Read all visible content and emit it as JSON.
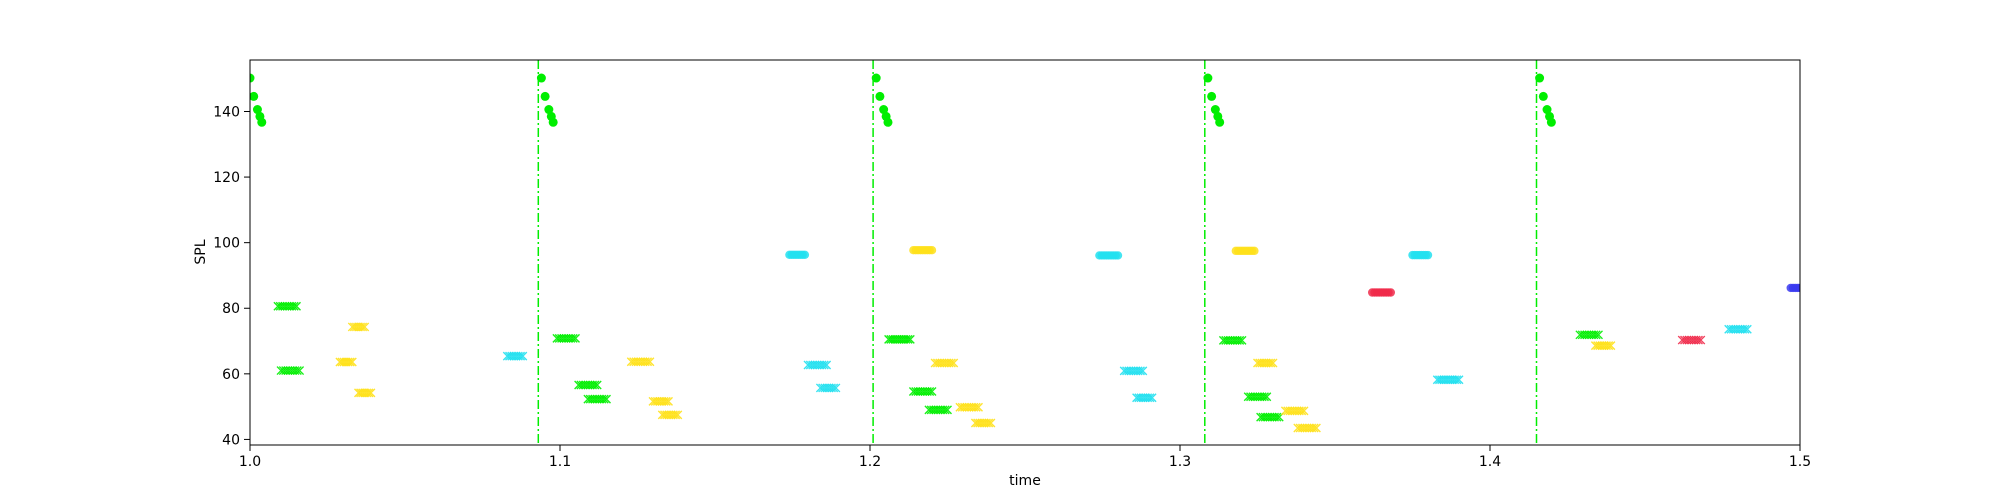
{
  "chart_data": {
    "type": "scatter",
    "title": "",
    "xlabel": "time",
    "ylabel": "SPL",
    "xlim": [
      1.0,
      1.5
    ],
    "ylim": [
      38.3,
      155.7
    ],
    "grid": false,
    "x_ticks": [
      {
        "value": 1.0,
        "label": "1.0"
      },
      {
        "value": 1.1,
        "label": "1.1"
      },
      {
        "value": 1.2,
        "label": "1.2"
      },
      {
        "value": 1.3,
        "label": "1.3"
      },
      {
        "value": 1.4,
        "label": "1.4"
      },
      {
        "value": 1.5,
        "label": "1.5"
      }
    ],
    "y_ticks": [
      {
        "value": 40,
        "label": "40"
      },
      {
        "value": 60,
        "label": "60"
      },
      {
        "value": 80,
        "label": "80"
      },
      {
        "value": 100,
        "label": "100"
      },
      {
        "value": 120,
        "label": "120"
      },
      {
        "value": 140,
        "label": "140"
      }
    ],
    "vlines": {
      "color": "#00ee00",
      "style": "dash-dot",
      "x": [
        1.093,
        1.201,
        1.308,
        1.415
      ]
    },
    "onset_markers": {
      "color": "#00ee00",
      "marker": "circle",
      "y_levels": [
        150.2,
        144.6,
        140.6,
        138.5,
        136.7
      ],
      "x_offsets": [
        0.0,
        0.0012,
        0.0024,
        0.0032,
        0.0038
      ],
      "onsets": [
        1.0,
        1.094,
        1.202,
        1.309,
        1.416
      ]
    },
    "colors": {
      "green": "#00ee00",
      "yellow": "#ffe11a",
      "cyan": "#22e0f0",
      "red": "#f02a4a",
      "blue": "#3a3af0"
    },
    "segments": [
      {
        "color": "green",
        "marker": "x",
        "x_start": 1.009,
        "x_end": 1.015,
        "y": 80.6
      },
      {
        "color": "green",
        "marker": "x",
        "x_start": 1.01,
        "x_end": 1.016,
        "y": 61.0
      },
      {
        "color": "yellow",
        "marker": "x",
        "x_start": 1.029,
        "x_end": 1.033,
        "y": 63.6
      },
      {
        "color": "yellow",
        "marker": "x",
        "x_start": 1.033,
        "x_end": 1.037,
        "y": 74.3
      },
      {
        "color": "yellow",
        "marker": "x",
        "x_start": 1.035,
        "x_end": 1.039,
        "y": 54.2
      },
      {
        "color": "cyan",
        "marker": "x",
        "x_start": 1.083,
        "x_end": 1.088,
        "y": 65.4
      },
      {
        "color": "green",
        "marker": "x",
        "x_start": 1.099,
        "x_end": 1.105,
        "y": 70.8
      },
      {
        "color": "green",
        "marker": "x",
        "x_start": 1.106,
        "x_end": 1.112,
        "y": 56.6
      },
      {
        "color": "green",
        "marker": "x",
        "x_start": 1.109,
        "x_end": 1.115,
        "y": 52.3
      },
      {
        "color": "yellow",
        "marker": "x",
        "x_start": 1.123,
        "x_end": 1.129,
        "y": 63.7
      },
      {
        "color": "yellow",
        "marker": "x",
        "x_start": 1.13,
        "x_end": 1.135,
        "y": 51.6
      },
      {
        "color": "yellow",
        "marker": "x",
        "x_start": 1.133,
        "x_end": 1.138,
        "y": 47.5
      },
      {
        "color": "cyan",
        "marker": "circle",
        "x_start": 1.174,
        "x_end": 1.179,
        "y": 96.3
      },
      {
        "color": "cyan",
        "marker": "x",
        "x_start": 1.18,
        "x_end": 1.186,
        "y": 62.7
      },
      {
        "color": "cyan",
        "marker": "x",
        "x_start": 1.184,
        "x_end": 1.189,
        "y": 55.7
      },
      {
        "color": "green",
        "marker": "x",
        "x_start": 1.206,
        "x_end": 1.213,
        "y": 70.5
      },
      {
        "color": "green",
        "marker": "x",
        "x_start": 1.214,
        "x_end": 1.22,
        "y": 54.6
      },
      {
        "color": "green",
        "marker": "x",
        "x_start": 1.219,
        "x_end": 1.225,
        "y": 49.0
      },
      {
        "color": "yellow",
        "marker": "circle",
        "x_start": 1.214,
        "x_end": 1.22,
        "y": 97.7
      },
      {
        "color": "yellow",
        "marker": "x",
        "x_start": 1.221,
        "x_end": 1.227,
        "y": 63.3
      },
      {
        "color": "yellow",
        "marker": "x",
        "x_start": 1.229,
        "x_end": 1.235,
        "y": 49.8
      },
      {
        "color": "yellow",
        "marker": "x",
        "x_start": 1.234,
        "x_end": 1.239,
        "y": 45.0
      },
      {
        "color": "cyan",
        "marker": "circle",
        "x_start": 1.274,
        "x_end": 1.28,
        "y": 96.1
      },
      {
        "color": "cyan",
        "marker": "x",
        "x_start": 1.282,
        "x_end": 1.288,
        "y": 60.9
      },
      {
        "color": "cyan",
        "marker": "x",
        "x_start": 1.286,
        "x_end": 1.291,
        "y": 52.7
      },
      {
        "color": "green",
        "marker": "x",
        "x_start": 1.314,
        "x_end": 1.32,
        "y": 70.2
      },
      {
        "color": "green",
        "marker": "x",
        "x_start": 1.322,
        "x_end": 1.328,
        "y": 53.0
      },
      {
        "color": "green",
        "marker": "x",
        "x_start": 1.326,
        "x_end": 1.332,
        "y": 46.8
      },
      {
        "color": "yellow",
        "marker": "circle",
        "x_start": 1.318,
        "x_end": 1.324,
        "y": 97.5
      },
      {
        "color": "yellow",
        "marker": "x",
        "x_start": 1.325,
        "x_end": 1.33,
        "y": 63.3
      },
      {
        "color": "yellow",
        "marker": "x",
        "x_start": 1.334,
        "x_end": 1.34,
        "y": 48.7
      },
      {
        "color": "yellow",
        "marker": "x",
        "x_start": 1.338,
        "x_end": 1.344,
        "y": 43.5
      },
      {
        "color": "red",
        "marker": "circle",
        "x_start": 1.362,
        "x_end": 1.368,
        "y": 84.8
      },
      {
        "color": "cyan",
        "marker": "circle",
        "x_start": 1.375,
        "x_end": 1.38,
        "y": 96.2
      },
      {
        "color": "cyan",
        "marker": "x",
        "x_start": 1.383,
        "x_end": 1.39,
        "y": 58.2
      },
      {
        "color": "green",
        "marker": "x",
        "x_start": 1.429,
        "x_end": 1.435,
        "y": 71.9
      },
      {
        "color": "yellow",
        "marker": "x",
        "x_start": 1.434,
        "x_end": 1.439,
        "y": 68.6
      },
      {
        "color": "red",
        "marker": "x",
        "x_start": 1.462,
        "x_end": 1.468,
        "y": 70.3
      },
      {
        "color": "cyan",
        "marker": "x",
        "x_start": 1.477,
        "x_end": 1.483,
        "y": 73.6
      },
      {
        "color": "blue",
        "marker": "circle",
        "x_start": 1.497,
        "x_end": 1.5,
        "y": 86.2
      }
    ]
  }
}
